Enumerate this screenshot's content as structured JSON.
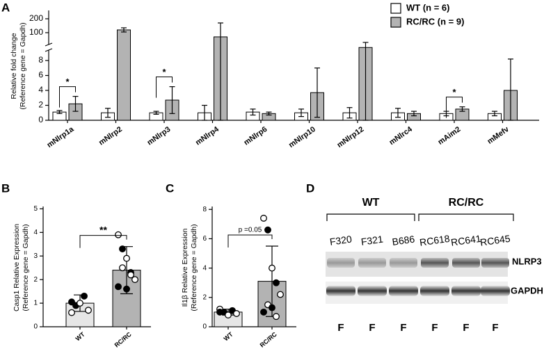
{
  "chart_data": [
    {
      "type": "bar",
      "panel": "A",
      "ylabel_line1": "Relative fold change",
      "ylabel_line2": "(Reference gene = Gapdh)",
      "categories": [
        "mNlrp1a",
        "mNlrp2",
        "mNlrp3",
        "mNlrp4",
        "mNlrp6",
        "mNlrp10",
        "mNlrp12",
        "mNlrc4",
        "mAim2",
        "mMefv"
      ],
      "series": [
        {
          "name": "WT (n = 6)",
          "color": "#ffffff",
          "values": [
            1.1,
            1.0,
            1.0,
            1.0,
            1.1,
            1.0,
            1.0,
            1.0,
            0.9,
            0.9
          ],
          "errors": [
            0.2,
            0.6,
            0.2,
            1.0,
            0.4,
            0.5,
            0.7,
            0.6,
            0.3,
            0.3
          ]
        },
        {
          "name": "RC/RC (n = 9)",
          "color": "#b3b3b3",
          "values": [
            2.2,
            120,
            2.7,
            70,
            0.9,
            3.7,
            12,
            0.9,
            1.5,
            4.0
          ],
          "errors": [
            1.0,
            15,
            1.8,
            100,
            0.2,
            3.3,
            18,
            0.3,
            0.3,
            4.2
          ]
        }
      ],
      "ylim_lower": [
        0,
        9.4
      ],
      "yticks_lower": [
        0,
        2,
        4,
        6,
        8
      ],
      "ylim_upper": [
        15,
        260
      ],
      "yticks_upper": [
        100,
        200
      ],
      "significance": [
        {
          "category": "mNlrp1a",
          "label": "*"
        },
        {
          "category": "mNlrp3",
          "label": "*"
        },
        {
          "category": "mAim2",
          "label": "*"
        }
      ],
      "legend": "top-right"
    },
    {
      "type": "bar",
      "panel": "B",
      "ylabel_line1": "Casp1 Relative Expression",
      "ylabel_line2": "(Reference gene = Gapdh)",
      "categories": [
        "WT",
        "RC/RC"
      ],
      "colors": [
        "#e6e6e6",
        "#b3b3b3"
      ],
      "values": [
        1.0,
        2.4
      ],
      "errors": [
        0.35,
        1.0
      ],
      "points": [
        [
          0.6,
          0.9,
          1.0,
          1.3,
          0.7,
          1.05
        ],
        [
          3.9,
          3.3,
          2.9,
          2.3,
          2.0,
          1.7,
          2.5,
          1.6,
          2.2
        ]
      ],
      "ylim": [
        0,
        5.1
      ],
      "yticks": [
        0,
        1,
        2,
        3,
        4,
        5
      ],
      "significance": "**"
    },
    {
      "type": "bar",
      "panel": "C",
      "ylabel_line1": "Il1β Relative Expression",
      "ylabel_line2": "(Reference gene = Gapdh)",
      "categories": [
        "WT",
        "RC/RC"
      ],
      "colors": [
        "#e6e6e6",
        "#b3b3b3"
      ],
      "values": [
        1.0,
        3.1
      ],
      "errors": [
        0.2,
        2.4
      ],
      "points": [
        [
          1.2,
          1.0,
          0.8,
          1.1,
          0.9,
          1.0
        ],
        [
          7.4,
          6.6,
          4.0,
          3.0,
          2.2,
          1.0,
          1.5,
          1.3,
          0.7
        ]
      ],
      "ylim": [
        0,
        8.2
      ],
      "yticks": [
        0,
        2,
        4,
        6,
        8
      ],
      "significance": "p =0.05"
    }
  ],
  "blot": {
    "panel": "D",
    "groups": [
      "WT",
      "RC/RC"
    ],
    "samples": [
      "F320",
      "F321",
      "B686",
      "RC618",
      "RC641",
      "RC645"
    ],
    "bands": [
      "NLRP3",
      "GAPDH"
    ],
    "lane_label": "F"
  }
}
